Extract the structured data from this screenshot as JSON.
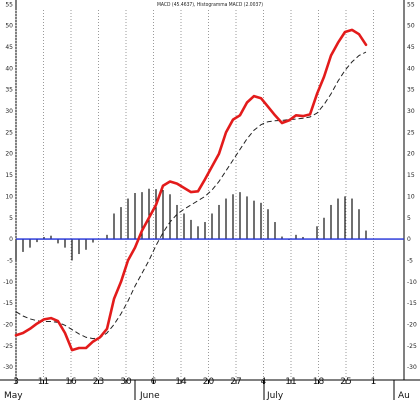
{
  "chart_data": {
    "type": "line",
    "title": "MACD (45.4637), Histogramma MACD (2.0037)",
    "ylim": [
      -33,
      56
    ],
    "y_ticks": [
      55,
      50,
      45,
      40,
      35,
      30,
      25,
      20,
      15,
      10,
      5,
      0,
      -5,
      -10,
      -15,
      -20,
      -25,
      -30
    ],
    "x_tick_labels": [
      "3",
      "11",
      "16",
      "23",
      "30",
      "6",
      "14",
      "20",
      "27",
      "4",
      "11",
      "18",
      "25",
      "1"
    ],
    "month_labels": [
      "May",
      "June",
      "July",
      "Au"
    ],
    "grid": "vertical-dotted",
    "zero_line_color": "#1f2fd8",
    "series": [
      {
        "name": "MACD",
        "style": "solid",
        "color": "#e31b1b",
        "values": [
          -22.5,
          -22,
          -21,
          -19.8,
          -18.8,
          -18.5,
          -19.2,
          -22,
          -26,
          -25.5,
          -25.5,
          -24,
          -23,
          -21,
          -14,
          -10,
          -5,
          -2,
          2,
          5,
          8,
          12.5,
          13.5,
          13,
          12,
          11,
          11.2,
          14,
          17,
          20,
          25,
          28,
          29,
          32,
          33.5,
          33,
          31,
          29,
          27.2,
          27.8,
          29,
          28.8,
          29.2,
          34,
          38,
          43,
          46,
          48.5,
          49,
          48,
          45.5
        ]
      },
      {
        "name": "Signal",
        "style": "dashed",
        "color": "#222222",
        "values": [
          -17,
          -18,
          -18.7,
          -19.1,
          -19.3,
          -19.3,
          -19.5,
          -20.2,
          -21.2,
          -22.2,
          -23,
          -23.3,
          -23.1,
          -22,
          -20,
          -17.5,
          -14.5,
          -11,
          -8,
          -5,
          -1.5,
          1.5,
          4,
          5.8,
          7,
          8,
          9,
          10,
          11.5,
          13.5,
          16,
          18.5,
          21,
          23.5,
          25.5,
          26.8,
          27.5,
          27.7,
          27.8,
          28,
          28.1,
          28.3,
          28.6,
          29.5,
          31.5,
          34,
          37,
          39.5,
          41.5,
          43,
          43.8
        ]
      },
      {
        "name": "Histogram",
        "style": "bars",
        "color": "#111111",
        "values": [
          -5,
          -3,
          -2,
          -0.7,
          0.5,
          0.8,
          -1,
          -2,
          -5,
          -3.5,
          -2.5,
          -0.8,
          0,
          1,
          6,
          7.5,
          9.5,
          10.8,
          11,
          11.8,
          11.7,
          11.5,
          10.5,
          8,
          6,
          4.5,
          3,
          4,
          6,
          8,
          9.5,
          10.5,
          11,
          10,
          9,
          8.5,
          7,
          4,
          0.6,
          -0.2,
          1,
          0.5,
          0,
          3,
          5,
          8,
          9.5,
          10,
          9.5,
          7,
          2
        ]
      }
    ]
  }
}
